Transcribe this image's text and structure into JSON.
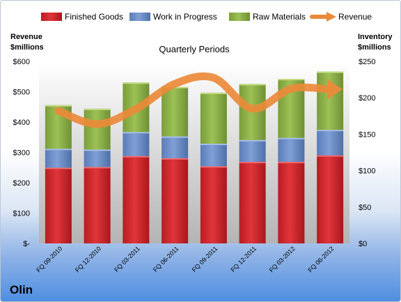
{
  "company": "Olin",
  "chart_data": {
    "type": "bar",
    "stacked": true,
    "title": "Quarterly Periods",
    "categories": [
      "FQ 09-2010",
      "FQ 12-2010",
      "FQ 03-2011",
      "FQ 06-2011",
      "FQ 09-2011",
      "FQ 12-2011",
      "FQ 03-2012",
      "FQ 06-2012"
    ],
    "ylabel_left": [
      "Revenue",
      "$millions"
    ],
    "ylabel_right": [
      "Inventory",
      "$millions"
    ],
    "ylim_left": [
      0,
      600
    ],
    "ylim_right": [
      0,
      250
    ],
    "yticks_left": [
      "$-",
      "$100",
      "$200",
      "$300",
      "$400",
      "$500",
      "$600"
    ],
    "yticks_right": [
      "$0",
      "$50",
      "$100",
      "$150",
      "$200",
      "$250"
    ],
    "series": [
      {
        "name": "Finished Goods",
        "axis": "right",
        "color": "#d9262b",
        "values": [
          104,
          105,
          120,
          117,
          106,
          112,
          112,
          121
        ]
      },
      {
        "name": "Work in Progress",
        "axis": "right",
        "color": "#6e8fc9",
        "values": [
          26,
          24,
          33,
          30,
          31,
          30,
          33,
          35
        ]
      },
      {
        "name": "Raw Materials",
        "axis": "right",
        "color": "#8fb44a",
        "values": [
          60,
          56,
          68,
          68,
          70,
          77,
          81,
          80
        ]
      },
      {
        "name": "Revenue",
        "axis": "left",
        "type": "line",
        "color": "#ea8a3a",
        "values": [
          437,
          393,
          443,
          526,
          546,
          444,
          510,
          508
        ]
      }
    ],
    "legend_position": "top",
    "grid": false
  }
}
